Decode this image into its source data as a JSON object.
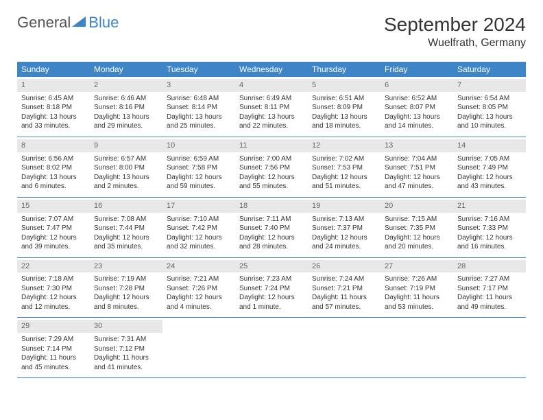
{
  "logo": {
    "text_general": "General",
    "text_blue": "Blue",
    "triangle_color": "#3d85c6"
  },
  "title": {
    "month_year": "September 2024",
    "location": "Wuelfrath, Germany"
  },
  "calendar": {
    "header_bg": "#3d85c6",
    "header_text_color": "#ffffff",
    "day_band_bg": "#e8e8e8",
    "border_color": "#3d85c6",
    "weekdays": [
      "Sunday",
      "Monday",
      "Tuesday",
      "Wednesday",
      "Thursday",
      "Friday",
      "Saturday"
    ],
    "weeks": [
      [
        {
          "day": "1",
          "sunrise": "Sunrise: 6:45 AM",
          "sunset": "Sunset: 8:18 PM",
          "daylight1": "Daylight: 13 hours",
          "daylight2": "and 33 minutes."
        },
        {
          "day": "2",
          "sunrise": "Sunrise: 6:46 AM",
          "sunset": "Sunset: 8:16 PM",
          "daylight1": "Daylight: 13 hours",
          "daylight2": "and 29 minutes."
        },
        {
          "day": "3",
          "sunrise": "Sunrise: 6:48 AM",
          "sunset": "Sunset: 8:14 PM",
          "daylight1": "Daylight: 13 hours",
          "daylight2": "and 25 minutes."
        },
        {
          "day": "4",
          "sunrise": "Sunrise: 6:49 AM",
          "sunset": "Sunset: 8:11 PM",
          "daylight1": "Daylight: 13 hours",
          "daylight2": "and 22 minutes."
        },
        {
          "day": "5",
          "sunrise": "Sunrise: 6:51 AM",
          "sunset": "Sunset: 8:09 PM",
          "daylight1": "Daylight: 13 hours",
          "daylight2": "and 18 minutes."
        },
        {
          "day": "6",
          "sunrise": "Sunrise: 6:52 AM",
          "sunset": "Sunset: 8:07 PM",
          "daylight1": "Daylight: 13 hours",
          "daylight2": "and 14 minutes."
        },
        {
          "day": "7",
          "sunrise": "Sunrise: 6:54 AM",
          "sunset": "Sunset: 8:05 PM",
          "daylight1": "Daylight: 13 hours",
          "daylight2": "and 10 minutes."
        }
      ],
      [
        {
          "day": "8",
          "sunrise": "Sunrise: 6:56 AM",
          "sunset": "Sunset: 8:02 PM",
          "daylight1": "Daylight: 13 hours",
          "daylight2": "and 6 minutes."
        },
        {
          "day": "9",
          "sunrise": "Sunrise: 6:57 AM",
          "sunset": "Sunset: 8:00 PM",
          "daylight1": "Daylight: 13 hours",
          "daylight2": "and 2 minutes."
        },
        {
          "day": "10",
          "sunrise": "Sunrise: 6:59 AM",
          "sunset": "Sunset: 7:58 PM",
          "daylight1": "Daylight: 12 hours",
          "daylight2": "and 59 minutes."
        },
        {
          "day": "11",
          "sunrise": "Sunrise: 7:00 AM",
          "sunset": "Sunset: 7:56 PM",
          "daylight1": "Daylight: 12 hours",
          "daylight2": "and 55 minutes."
        },
        {
          "day": "12",
          "sunrise": "Sunrise: 7:02 AM",
          "sunset": "Sunset: 7:53 PM",
          "daylight1": "Daylight: 12 hours",
          "daylight2": "and 51 minutes."
        },
        {
          "day": "13",
          "sunrise": "Sunrise: 7:04 AM",
          "sunset": "Sunset: 7:51 PM",
          "daylight1": "Daylight: 12 hours",
          "daylight2": "and 47 minutes."
        },
        {
          "day": "14",
          "sunrise": "Sunrise: 7:05 AM",
          "sunset": "Sunset: 7:49 PM",
          "daylight1": "Daylight: 12 hours",
          "daylight2": "and 43 minutes."
        }
      ],
      [
        {
          "day": "15",
          "sunrise": "Sunrise: 7:07 AM",
          "sunset": "Sunset: 7:47 PM",
          "daylight1": "Daylight: 12 hours",
          "daylight2": "and 39 minutes."
        },
        {
          "day": "16",
          "sunrise": "Sunrise: 7:08 AM",
          "sunset": "Sunset: 7:44 PM",
          "daylight1": "Daylight: 12 hours",
          "daylight2": "and 35 minutes."
        },
        {
          "day": "17",
          "sunrise": "Sunrise: 7:10 AM",
          "sunset": "Sunset: 7:42 PM",
          "daylight1": "Daylight: 12 hours",
          "daylight2": "and 32 minutes."
        },
        {
          "day": "18",
          "sunrise": "Sunrise: 7:11 AM",
          "sunset": "Sunset: 7:40 PM",
          "daylight1": "Daylight: 12 hours",
          "daylight2": "and 28 minutes."
        },
        {
          "day": "19",
          "sunrise": "Sunrise: 7:13 AM",
          "sunset": "Sunset: 7:37 PM",
          "daylight1": "Daylight: 12 hours",
          "daylight2": "and 24 minutes."
        },
        {
          "day": "20",
          "sunrise": "Sunrise: 7:15 AM",
          "sunset": "Sunset: 7:35 PM",
          "daylight1": "Daylight: 12 hours",
          "daylight2": "and 20 minutes."
        },
        {
          "day": "21",
          "sunrise": "Sunrise: 7:16 AM",
          "sunset": "Sunset: 7:33 PM",
          "daylight1": "Daylight: 12 hours",
          "daylight2": "and 16 minutes."
        }
      ],
      [
        {
          "day": "22",
          "sunrise": "Sunrise: 7:18 AM",
          "sunset": "Sunset: 7:30 PM",
          "daylight1": "Daylight: 12 hours",
          "daylight2": "and 12 minutes."
        },
        {
          "day": "23",
          "sunrise": "Sunrise: 7:19 AM",
          "sunset": "Sunset: 7:28 PM",
          "daylight1": "Daylight: 12 hours",
          "daylight2": "and 8 minutes."
        },
        {
          "day": "24",
          "sunrise": "Sunrise: 7:21 AM",
          "sunset": "Sunset: 7:26 PM",
          "daylight1": "Daylight: 12 hours",
          "daylight2": "and 4 minutes."
        },
        {
          "day": "25",
          "sunrise": "Sunrise: 7:23 AM",
          "sunset": "Sunset: 7:24 PM",
          "daylight1": "Daylight: 12 hours",
          "daylight2": "and 1 minute."
        },
        {
          "day": "26",
          "sunrise": "Sunrise: 7:24 AM",
          "sunset": "Sunset: 7:21 PM",
          "daylight1": "Daylight: 11 hours",
          "daylight2": "and 57 minutes."
        },
        {
          "day": "27",
          "sunrise": "Sunrise: 7:26 AM",
          "sunset": "Sunset: 7:19 PM",
          "daylight1": "Daylight: 11 hours",
          "daylight2": "and 53 minutes."
        },
        {
          "day": "28",
          "sunrise": "Sunrise: 7:27 AM",
          "sunset": "Sunset: 7:17 PM",
          "daylight1": "Daylight: 11 hours",
          "daylight2": "and 49 minutes."
        }
      ],
      [
        {
          "day": "29",
          "sunrise": "Sunrise: 7:29 AM",
          "sunset": "Sunset: 7:14 PM",
          "daylight1": "Daylight: 11 hours",
          "daylight2": "and 45 minutes."
        },
        {
          "day": "30",
          "sunrise": "Sunrise: 7:31 AM",
          "sunset": "Sunset: 7:12 PM",
          "daylight1": "Daylight: 11 hours",
          "daylight2": "and 41 minutes."
        },
        {
          "day": "",
          "empty": true
        },
        {
          "day": "",
          "empty": true
        },
        {
          "day": "",
          "empty": true
        },
        {
          "day": "",
          "empty": true
        },
        {
          "day": "",
          "empty": true
        }
      ]
    ]
  }
}
